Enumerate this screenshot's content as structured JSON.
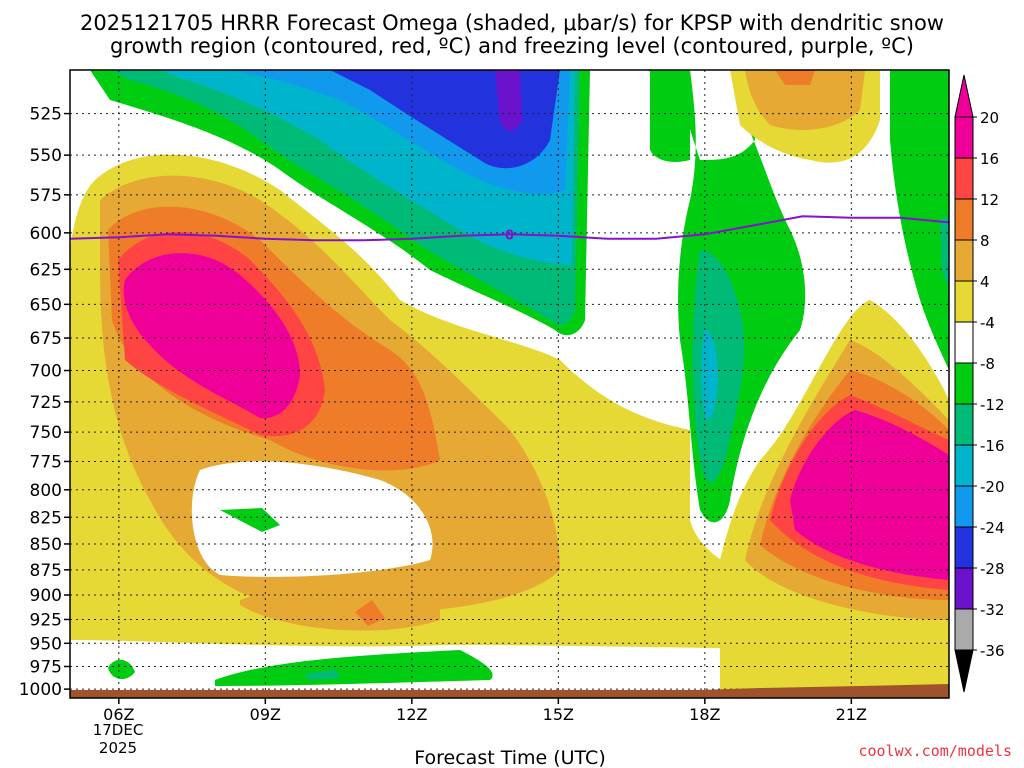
{
  "chart_data": {
    "type": "contour",
    "title_line1": "2025121705 HRRR Forecast Omega (shaded, μbar/s) for KPSP with dendritic snow",
    "title_line2": "growth region (contoured, red, ºC) and freezing level (contoured, purple, ºC)",
    "xlabel": "Forecast Time (UTC)",
    "credit": "coolwx.com/models",
    "x_ticks": [
      {
        "label": "06Z",
        "hour": 6
      },
      {
        "label": "09Z",
        "hour": 9
      },
      {
        "label": "12Z",
        "hour": 12
      },
      {
        "label": "15Z",
        "hour": 15
      },
      {
        "label": "18Z",
        "hour": 18
      },
      {
        "label": "21Z",
        "hour": 21
      }
    ],
    "x_sublabels": [
      "17DEC",
      "2025"
    ],
    "x_range_hours": [
      5,
      23
    ],
    "y_levels_hpa": [
      525,
      550,
      575,
      600,
      625,
      650,
      675,
      700,
      725,
      750,
      775,
      800,
      825,
      850,
      875,
      900,
      925,
      950,
      975,
      1000
    ],
    "y_range_hpa": [
      500,
      1010
    ],
    "y_scale": "log-pressure",
    "freezing_level": {
      "label": "0",
      "points": [
        {
          "hour": 5,
          "hpa": 604
        },
        {
          "hour": 6,
          "hpa": 603
        },
        {
          "hour": 7,
          "hpa": 601
        },
        {
          "hour": 8,
          "hpa": 602
        },
        {
          "hour": 9,
          "hpa": 604
        },
        {
          "hour": 10,
          "hpa": 605
        },
        {
          "hour": 11,
          "hpa": 605
        },
        {
          "hour": 12,
          "hpa": 604
        },
        {
          "hour": 13,
          "hpa": 602
        },
        {
          "hour": 14,
          "hpa": 601
        },
        {
          "hour": 15,
          "hpa": 602
        },
        {
          "hour": 16,
          "hpa": 604
        },
        {
          "hour": 17,
          "hpa": 604
        },
        {
          "hour": 18,
          "hpa": 601
        },
        {
          "hour": 19,
          "hpa": 595
        },
        {
          "hour": 20,
          "hpa": 589
        },
        {
          "hour": 21,
          "hpa": 590
        },
        {
          "hour": 22,
          "hpa": 590
        },
        {
          "hour": 23,
          "hpa": 593
        }
      ]
    },
    "colorbar": {
      "labels": [
        "20",
        "16",
        "12",
        "8",
        "4",
        "-4",
        "-8",
        "-12",
        "-16",
        "-20",
        "-24",
        "-28",
        "-32",
        "-36"
      ],
      "bins": [
        {
          "color": "#ee0099"
        },
        {
          "color": "#ff4444"
        },
        {
          "color": "#ee7c28"
        },
        {
          "color": "#e6a933"
        },
        {
          "color": "#e6d936"
        },
        {
          "color": "#ffffff"
        },
        {
          "color": "#00cc11"
        },
        {
          "color": "#00bb77"
        },
        {
          "color": "#00b4cc"
        },
        {
          "color": "#1199ee"
        },
        {
          "color": "#2233dd"
        },
        {
          "color": "#6a11cc"
        },
        {
          "color": "#9911cc"
        },
        {
          "color": "#aaaaaa"
        }
      ]
    },
    "regions": [
      {
        "label": "strong upward motion (≤20 μbar/s)",
        "hour": 8.2,
        "hpa": 680
      },
      {
        "label": "strong upward motion (≤20 μbar/s)",
        "hour": 21.8,
        "hpa": 840
      },
      {
        "label": "downward motion (-24 to -32 μbar/s)",
        "hour": 13.8,
        "hpa": 530
      },
      {
        "label": "downward motion (-12 to -16 μbar/s)",
        "hour": 18.0,
        "hpa": 710
      }
    ]
  }
}
